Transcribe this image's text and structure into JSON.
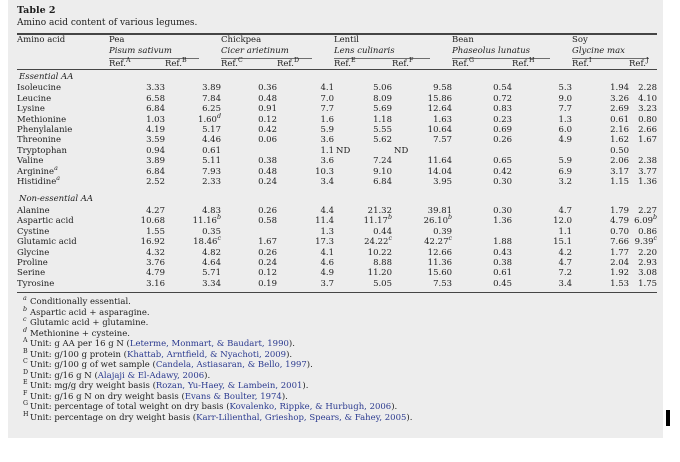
{
  "table_label": "Table 2",
  "caption": "Amino acid content of various legumes.",
  "columns": {
    "amino_acid_header": "Amino acid",
    "ref_prefix": "Ref.",
    "groups": [
      {
        "name": "Pea",
        "latin": "Pisum sativum",
        "refs": [
          "A",
          "B"
        ]
      },
      {
        "name": "Chickpea",
        "latin": "Cicer arietinum",
        "refs": [
          "C",
          "D"
        ]
      },
      {
        "name": "Lentil",
        "latin": "Lens culinaris",
        "refs": [
          "E",
          "F"
        ]
      },
      {
        "name": "Bean",
        "latin": "Phaseolus lunatus",
        "refs": [
          "G",
          "H"
        ]
      },
      {
        "name": "Soy",
        "latin": "Glycine max",
        "refs": [
          "I",
          "J"
        ]
      }
    ]
  },
  "sections": [
    {
      "title": "Essential AA",
      "rows": [
        {
          "name": "Isoleucine",
          "values": [
            "3.33",
            "3.89",
            "0.36",
            "4.1",
            "5.06",
            "9.58",
            "0.54",
            "5.3",
            "1.94",
            "2.28"
          ]
        },
        {
          "name": "Leucine",
          "values": [
            "6.58",
            "7.84",
            "0.48",
            "7.0",
            "8.09",
            "15.86",
            "0.72",
            "9.0",
            "3.26",
            "4.10"
          ]
        },
        {
          "name": "Lysine",
          "values": [
            "6.84",
            "6.25",
            "0.91",
            "7.7",
            "5.69",
            "12.64",
            "0.83",
            "7.7",
            "2.69",
            "3.23"
          ]
        },
        {
          "name": "Methionine",
          "values": [
            "1.03",
            "1.60^d",
            "0.12",
            "1.6",
            "1.18",
            "1.63",
            "0.23",
            "1.3",
            "0.61",
            "0.80"
          ]
        },
        {
          "name": "Phenylalanie",
          "values": [
            "4.19",
            "5.17",
            "0.42",
            "5.9",
            "5.55",
            "10.64",
            "0.69",
            "6.0",
            "2.16",
            "2.66"
          ]
        },
        {
          "name": "Threonine",
          "values": [
            "3.59",
            "4.46",
            "0.06",
            "3.6",
            "5.62",
            "7.57",
            "0.26",
            "4.9",
            "1.62",
            "1.67"
          ]
        },
        {
          "name": "Tryptophan",
          "values": [
            "0.94",
            "0.61",
            "",
            "1.1",
            "ND",
            "ND",
            "",
            "",
            "0.50",
            ""
          ]
        },
        {
          "name": "Valine",
          "values": [
            "3.89",
            "5.11",
            "0.38",
            "3.6",
            "7.24",
            "11.64",
            "0.65",
            "5.9",
            "2.06",
            "2.38"
          ]
        },
        {
          "name": "Arginine^a",
          "values": [
            "6.84",
            "7.93",
            "0.48",
            "10.3",
            "9.10",
            "14.04",
            "0.42",
            "6.9",
            "3.17",
            "3.77"
          ]
        },
        {
          "name": "Histidine^a",
          "values": [
            "2.52",
            "2.33",
            "0.24",
            "3.4",
            "6.84",
            "3.95",
            "0.30",
            "3.2",
            "1.15",
            "1.36"
          ]
        }
      ]
    },
    {
      "title": "Non-essential AA",
      "rows": [
        {
          "name": "Alanine",
          "values": [
            "4.27",
            "4.83",
            "0.26",
            "4.4",
            "21.32",
            "39.81",
            "0.30",
            "4.7",
            "1.79",
            "2.27"
          ]
        },
        {
          "name": "Aspartic acid",
          "values": [
            "10.68",
            "11.16^b",
            "0.58",
            "11.4",
            "11.17^b",
            "26.10^b",
            "1.36",
            "12.0",
            "4.79",
            "6.09^b"
          ]
        },
        {
          "name": "Cystine",
          "values": [
            "1.55",
            "0.35",
            "",
            "1.3",
            "0.44",
            "0.39",
            "",
            "1.1",
            "0.70",
            "0.86"
          ]
        },
        {
          "name": "Glutamic acid",
          "values": [
            "16.92",
            "18.46^c",
            "1.67",
            "17.3",
            "24.22^c",
            "42.27^c",
            "1.88",
            "15.1",
            "7.66",
            "9.39^c"
          ]
        },
        {
          "name": "Glycine",
          "values": [
            "4.32",
            "4.82",
            "0.26",
            "4.1",
            "10.22",
            "12.66",
            "0.43",
            "4.2",
            "1.77",
            "2.20"
          ]
        },
        {
          "name": "Proline",
          "values": [
            "3.76",
            "4.64",
            "0.24",
            "4.6",
            "8.88",
            "11.36",
            "0.38",
            "4.7",
            "2.04",
            "2.93"
          ]
        },
        {
          "name": "Serine",
          "values": [
            "4.79",
            "5.71",
            "0.12",
            "4.9",
            "11.20",
            "15.60",
            "0.61",
            "7.2",
            "1.92",
            "3.08"
          ]
        },
        {
          "name": "Tyrosine",
          "values": [
            "3.16",
            "3.34",
            "0.19",
            "3.7",
            "5.05",
            "7.53",
            "0.45",
            "3.4",
            "1.53",
            "1.75"
          ]
        }
      ]
    }
  ],
  "footnotes": [
    {
      "m": "a",
      "t": "Conditionally essential."
    },
    {
      "m": "b",
      "t": "Aspartic acid + asparagine."
    },
    {
      "m": "c",
      "t": "Glutamic acid + glutamine."
    },
    {
      "m": "d",
      "t": "Methionine + cysteine."
    },
    {
      "m": "A",
      "t": "Unit: g AA per 16 g N (",
      "c": "Leterme, Monmart, & Baudart, 1990",
      "e": ")."
    },
    {
      "m": "B",
      "t": "Unit: g/100 g protein (",
      "c": "Khattab, Arntfield, & Nyachoti, 2009",
      "e": ")."
    },
    {
      "m": "C",
      "t": "Unit: g/100 g of wet sample (",
      "c": "Candela, Astiasaran, & Bello, 1997",
      "e": ")."
    },
    {
      "m": "D",
      "t": "Unit: g/16 g N (",
      "c": "Alajaji & El-Adawy, 2006",
      "e": ")."
    },
    {
      "m": "E",
      "t": "Unit: mg/g dry weight basis (",
      "c": "Rozan, Yu-Haey, & Lambein, 2001",
      "e": ")."
    },
    {
      "m": "F",
      "t": "Unit: g/16 g N on dry weight basis (",
      "c": "Evans & Boulter, 1974",
      "e": ")."
    },
    {
      "m": "G",
      "t": "Unit: percentage of total weight on dry basis (",
      "c": "Kovalenko, Rippke, & Hurbugh, 2006",
      "e": ")."
    },
    {
      "m": "H",
      "t": "Unit: percentage on dry weight basis (",
      "c": "Karr-Lilienthal, Grieshop, Spears, & Fahey, 2005",
      "e": ")."
    }
  ]
}
